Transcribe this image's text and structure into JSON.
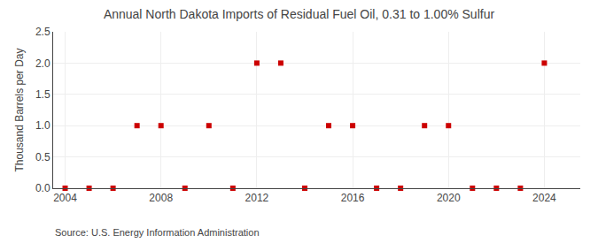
{
  "chart_data": {
    "type": "scatter",
    "title": "Annual North Dakota Imports of Residual Fuel Oil, 0.31 to 1.00% Sulfur",
    "y_label": "Thousand Barrels per Day",
    "annotations": [
      "Source: U.S. Energy Information Administration"
    ],
    "x": [
      2004,
      2005,
      2006,
      2007,
      2008,
      2009,
      2010,
      2011,
      2012,
      2013,
      2014,
      2015,
      2016,
      2017,
      2018,
      2019,
      2020,
      2021,
      2022,
      2023,
      2024
    ],
    "values": [
      0.0,
      0.0,
      0.0,
      1.0,
      1.0,
      0.0,
      1.0,
      0.0,
      2.0,
      2.0,
      0.0,
      1.0,
      1.0,
      0.0,
      0.0,
      1.0,
      1.0,
      0.0,
      0.0,
      0.0,
      2.0
    ],
    "color": "#cc0000",
    "marker": "square",
    "xlim": [
      2003.5,
      2025.5
    ],
    "xticks": [
      2004,
      2008,
      2012,
      2016,
      2020,
      2024
    ],
    "ylim": [
      0.0,
      2.5
    ],
    "yticks": [
      {
        "value": 0.0,
        "label": "0.0"
      },
      {
        "value": 0.5,
        "label": "0.5"
      },
      {
        "value": 1.0,
        "label": "1.0"
      },
      {
        "value": 1.5,
        "label": "1.5"
      },
      {
        "value": 2.0,
        "label": "2.0"
      },
      {
        "value": 2.5,
        "label": "2.5"
      }
    ],
    "grid": true
  }
}
